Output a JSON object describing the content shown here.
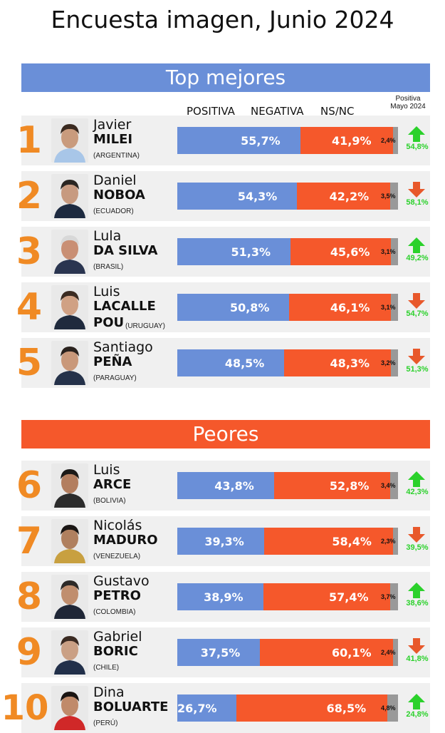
{
  "title": "Encuesta imagen, Junio 2024",
  "sections": {
    "top": "Top mejores",
    "bottom": "Peores"
  },
  "columns": {
    "positive": "POSITIVA",
    "negative": "NEGATIVA",
    "nsnc": "NS/NC",
    "previous_line1": "Positiva",
    "previous_line2": "Mayo 2024"
  },
  "colors": {
    "positive": "#6a8fd8",
    "negative": "#f5582b",
    "nsnc": "#999999",
    "rank": "#f08a24",
    "up": "#2bd12b",
    "down": "#e8582b"
  },
  "chart_data": {
    "type": "bar",
    "orientation": "horizontal-stacked",
    "categories": [
      "Javier MILEI",
      "Daniel NOBOA",
      "Lula DA SILVA",
      "Luis LACALLE POU",
      "Santiago PEÑA",
      "Luis ARCE",
      "Nicolás MADURO",
      "Gustavo PETRO",
      "Gabriel BORIC",
      "Dina BOLUARTE"
    ],
    "series": [
      {
        "name": "POSITIVA",
        "values": [
          55.7,
          54.3,
          51.3,
          50.8,
          48.5,
          43.8,
          39.3,
          38.9,
          37.5,
          26.7
        ]
      },
      {
        "name": "NEGATIVA",
        "values": [
          41.9,
          42.2,
          45.6,
          46.1,
          48.3,
          52.8,
          58.4,
          57.4,
          60.1,
          68.5
        ]
      },
      {
        "name": "NS/NC",
        "values": [
          2.4,
          3.5,
          3.1,
          3.1,
          3.2,
          3.4,
          2.3,
          3.7,
          2.4,
          4.8
        ]
      }
    ],
    "previous_positive": [
      54.8,
      58.1,
      49.2,
      54.7,
      51.3,
      42.3,
      39.5,
      38.6,
      41.8,
      24.8
    ],
    "xlim": [
      0,
      100
    ]
  },
  "rows": [
    {
      "rank": "1",
      "first": "Javier",
      "last": "MILEI",
      "country": "(ARGENTINA)",
      "pos": "55,7%",
      "neg": "41,9%",
      "ns": "2,4%",
      "prev": "54,8%",
      "trend": "up",
      "icon": "portrait-milei-icon"
    },
    {
      "rank": "2",
      "first": "Daniel",
      "last": "NOBOA",
      "country": "(ECUADOR)",
      "pos": "54,3%",
      "neg": "42,2%",
      "ns": "3,5%",
      "prev": "58,1%",
      "trend": "down",
      "icon": "portrait-noboa-icon"
    },
    {
      "rank": "3",
      "first": "Lula",
      "last": "DA SILVA",
      "country": "(BRASIL)",
      "pos": "51,3%",
      "neg": "45,6%",
      "ns": "3,1%",
      "prev": "49,2%",
      "trend": "up",
      "icon": "portrait-lula-icon"
    },
    {
      "rank": "4",
      "first": "Luis",
      "last": "LACALLE",
      "last2": "POU",
      "country": "(URUGUAY)",
      "pos": "50,8%",
      "neg": "46,1%",
      "ns": "3,1%",
      "prev": "54,7%",
      "trend": "down",
      "icon": "portrait-lacalle-icon"
    },
    {
      "rank": "5",
      "first": "Santiago",
      "last": "PEÑA",
      "country": "(PARAGUAY)",
      "pos": "48,5%",
      "neg": "48,3%",
      "ns": "3,2%",
      "prev": "51,3%",
      "trend": "down",
      "icon": "portrait-pena-icon"
    },
    {
      "rank": "6",
      "first": "Luis",
      "last": "ARCE",
      "country": "(BOLIVIA)",
      "pos": "43,8%",
      "neg": "52,8%",
      "ns": "3,4%",
      "prev": "42,3%",
      "trend": "up",
      "icon": "portrait-arce-icon"
    },
    {
      "rank": "7",
      "first": "Nicolás",
      "last": "MADURO",
      "country": "(VENEZUELA)",
      "pos": "39,3%",
      "neg": "58,4%",
      "ns": "2,3%",
      "prev": "39,5%",
      "trend": "down",
      "icon": "portrait-maduro-icon"
    },
    {
      "rank": "8",
      "first": "Gustavo",
      "last": "PETRO",
      "country": "(COLOMBIA)",
      "pos": "38,9%",
      "neg": "57,4%",
      "ns": "3,7%",
      "prev": "38,6%",
      "trend": "up",
      "icon": "portrait-petro-icon"
    },
    {
      "rank": "9",
      "first": "Gabriel",
      "last": "BORIC",
      "country": "(CHILE)",
      "pos": "37,5%",
      "neg": "60,1%",
      "ns": "2,4%",
      "prev": "41,8%",
      "trend": "down",
      "icon": "portrait-boric-icon"
    },
    {
      "rank": "10",
      "first": "Dina",
      "last": "BOLUARTE",
      "country": "(PERÚ)",
      "pos": "26,7%",
      "neg": "68,5%",
      "ns": "4,8%",
      "prev": "24,8%",
      "trend": "up",
      "icon": "portrait-boluarte-icon"
    }
  ]
}
